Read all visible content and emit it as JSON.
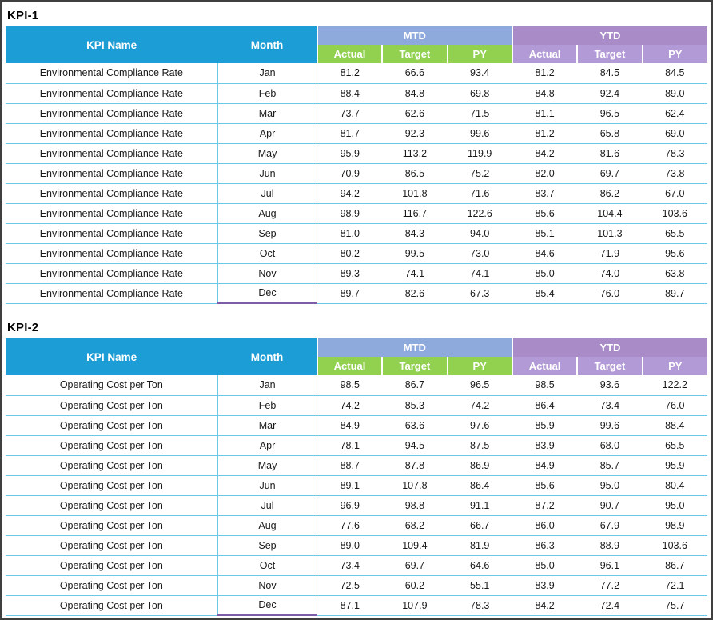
{
  "tables": [
    {
      "title": "KPI-1",
      "kpi_name_header": "KPI Name",
      "month_header": "Month",
      "groups": [
        {
          "label": "MTD"
        },
        {
          "label": "YTD"
        }
      ],
      "sub_headers": [
        "Actual",
        "Target",
        "PY"
      ],
      "rows": [
        {
          "kpi": "Environmental Compliance Rate",
          "month": "Jan",
          "values": [
            "81.2",
            "66.6",
            "93.4",
            "81.2",
            "84.5",
            "84.5"
          ]
        },
        {
          "kpi": "Environmental Compliance Rate",
          "month": "Feb",
          "values": [
            "88.4",
            "84.8",
            "69.8",
            "84.8",
            "92.4",
            "89.0"
          ]
        },
        {
          "kpi": "Environmental Compliance Rate",
          "month": "Mar",
          "values": [
            "73.7",
            "62.6",
            "71.5",
            "81.1",
            "96.5",
            "62.4"
          ]
        },
        {
          "kpi": "Environmental Compliance Rate",
          "month": "Apr",
          "values": [
            "81.7",
            "92.3",
            "99.6",
            "81.2",
            "65.8",
            "69.0"
          ]
        },
        {
          "kpi": "Environmental Compliance Rate",
          "month": "May",
          "values": [
            "95.9",
            "113.2",
            "119.9",
            "84.2",
            "81.6",
            "78.3"
          ]
        },
        {
          "kpi": "Environmental Compliance Rate",
          "month": "Jun",
          "values": [
            "70.9",
            "86.5",
            "75.2",
            "82.0",
            "69.7",
            "73.8"
          ]
        },
        {
          "kpi": "Environmental Compliance Rate",
          "month": "Jul",
          "values": [
            "94.2",
            "101.8",
            "71.6",
            "83.7",
            "86.2",
            "67.0"
          ]
        },
        {
          "kpi": "Environmental Compliance Rate",
          "month": "Aug",
          "values": [
            "98.9",
            "116.7",
            "122.6",
            "85.6",
            "104.4",
            "103.6"
          ]
        },
        {
          "kpi": "Environmental Compliance Rate",
          "month": "Sep",
          "values": [
            "81.0",
            "84.3",
            "94.0",
            "85.1",
            "101.3",
            "65.5"
          ]
        },
        {
          "kpi": "Environmental Compliance Rate",
          "month": "Oct",
          "values": [
            "80.2",
            "99.5",
            "73.0",
            "84.6",
            "71.9",
            "95.6"
          ]
        },
        {
          "kpi": "Environmental Compliance Rate",
          "month": "Nov",
          "values": [
            "89.3",
            "74.1",
            "74.1",
            "85.0",
            "74.0",
            "63.8"
          ]
        },
        {
          "kpi": "Environmental Compliance Rate",
          "month": "Dec",
          "values": [
            "89.7",
            "82.6",
            "67.3",
            "85.4",
            "76.0",
            "89.7"
          ]
        }
      ]
    },
    {
      "title": "KPI-2",
      "kpi_name_header": "KPI Name",
      "month_header": "Month",
      "groups": [
        {
          "label": "MTD"
        },
        {
          "label": "YTD"
        }
      ],
      "sub_headers": [
        "Actual",
        "Target",
        "PY"
      ],
      "rows": [
        {
          "kpi": "Operating Cost per Ton",
          "month": "Jan",
          "values": [
            "98.5",
            "86.7",
            "96.5",
            "98.5",
            "93.6",
            "122.2"
          ]
        },
        {
          "kpi": "Operating Cost per Ton",
          "month": "Feb",
          "values": [
            "74.2",
            "85.3",
            "74.2",
            "86.4",
            "73.4",
            "76.0"
          ]
        },
        {
          "kpi": "Operating Cost per Ton",
          "month": "Mar",
          "values": [
            "84.9",
            "63.6",
            "97.6",
            "85.9",
            "99.6",
            "88.4"
          ]
        },
        {
          "kpi": "Operating Cost per Ton",
          "month": "Apr",
          "values": [
            "78.1",
            "94.5",
            "87.5",
            "83.9",
            "68.0",
            "65.5"
          ]
        },
        {
          "kpi": "Operating Cost per Ton",
          "month": "May",
          "values": [
            "88.7",
            "87.8",
            "86.9",
            "84.9",
            "85.7",
            "95.9"
          ]
        },
        {
          "kpi": "Operating Cost per Ton",
          "month": "Jun",
          "values": [
            "89.1",
            "107.8",
            "86.4",
            "85.6",
            "95.0",
            "80.4"
          ]
        },
        {
          "kpi": "Operating Cost per Ton",
          "month": "Jul",
          "values": [
            "96.9",
            "98.8",
            "91.1",
            "87.2",
            "90.7",
            "95.0"
          ]
        },
        {
          "kpi": "Operating Cost per Ton",
          "month": "Aug",
          "values": [
            "77.6",
            "68.2",
            "66.7",
            "86.0",
            "67.9",
            "98.9"
          ]
        },
        {
          "kpi": "Operating Cost per Ton",
          "month": "Sep",
          "values": [
            "89.0",
            "109.4",
            "81.9",
            "86.3",
            "88.9",
            "103.6"
          ]
        },
        {
          "kpi": "Operating Cost per Ton",
          "month": "Oct",
          "values": [
            "73.4",
            "69.7",
            "64.6",
            "85.0",
            "96.1",
            "86.7"
          ]
        },
        {
          "kpi": "Operating Cost per Ton",
          "month": "Nov",
          "values": [
            "72.5",
            "60.2",
            "55.1",
            "83.9",
            "77.2",
            "72.1"
          ]
        },
        {
          "kpi": "Operating Cost per Ton",
          "month": "Dec",
          "values": [
            "87.1",
            "107.9",
            "78.3",
            "84.2",
            "72.4",
            "75.7"
          ]
        }
      ]
    }
  ],
  "colors": {
    "header_blue": "#1d9dd5",
    "mtd_group": "#8ea9db",
    "ytd_group": "#a98bc7",
    "sub_green": "#92d050",
    "sub_purple": "#b29ad6",
    "row_border": "#6cc9e6"
  }
}
